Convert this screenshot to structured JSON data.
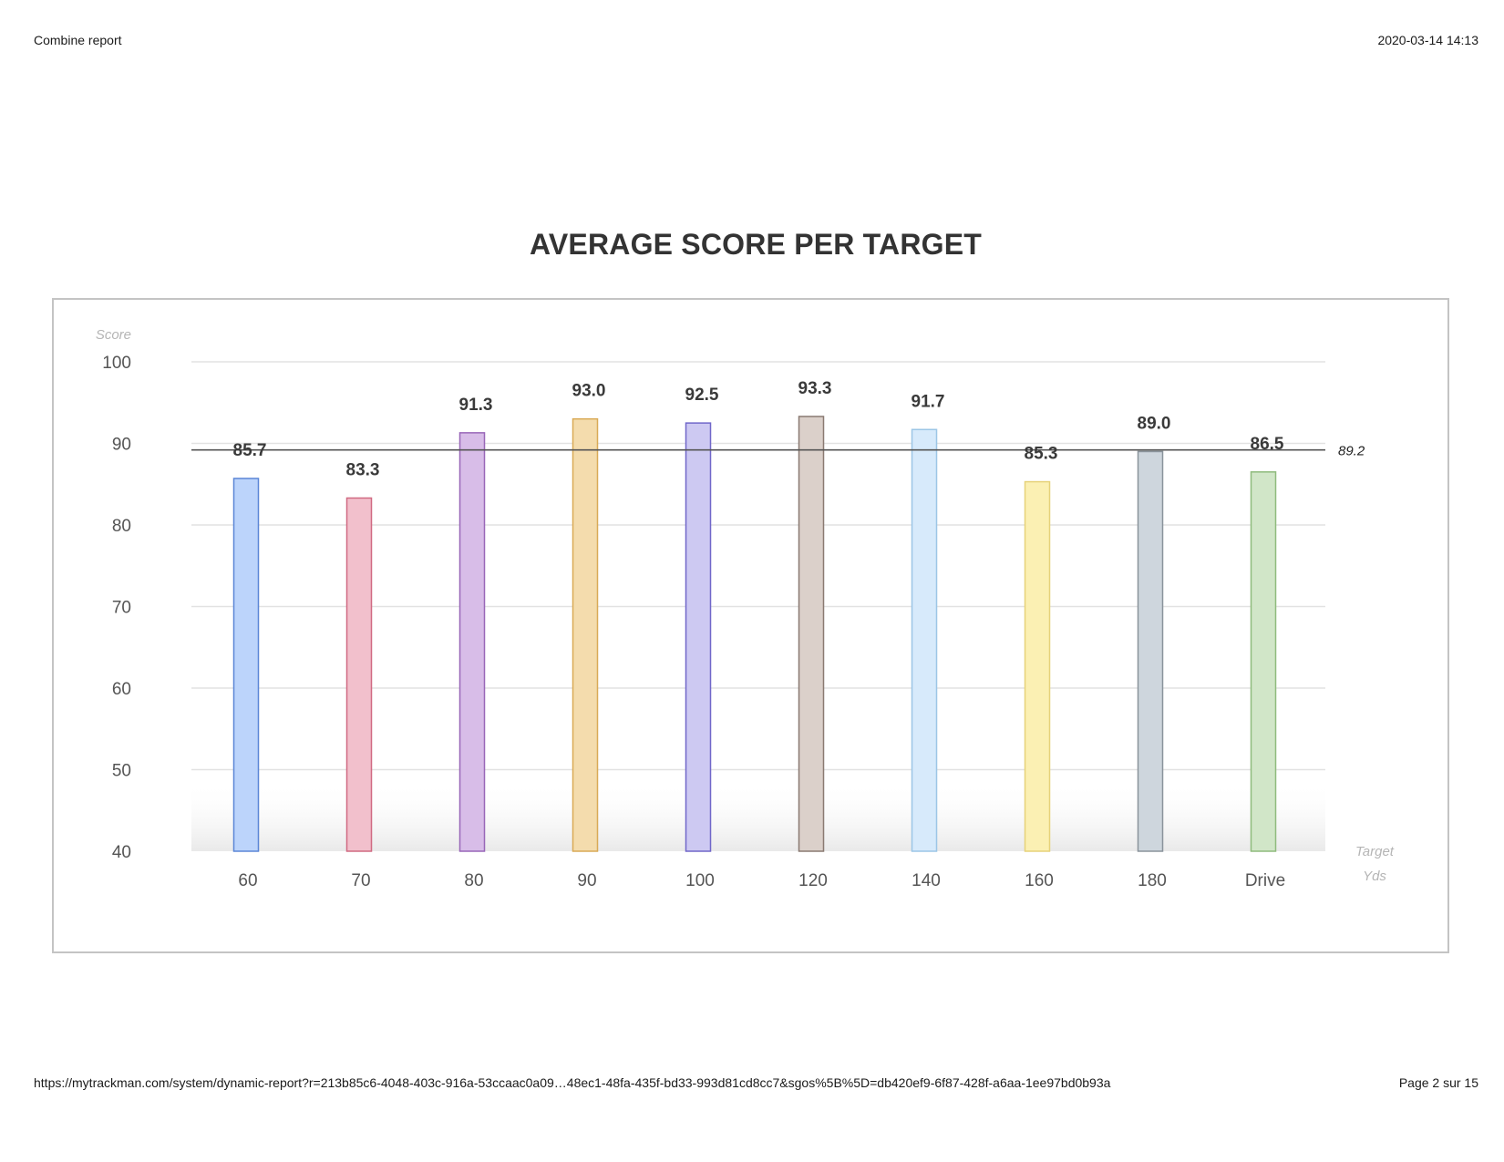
{
  "header": {
    "title": "Combine report",
    "timestamp": "2020-03-14 14:13"
  },
  "footer": {
    "url": "https://mytrackman.com/system/dynamic-report?r=213b85c6-4048-403c-916a-53ccaac0a09…48ec1-48fa-435f-bd33-993d81cd8cc7&sgos%5B%5D=db420ef9-6f87-428f-a6aa-1ee97bd0b93a",
    "page": "Page 2 sur 15"
  },
  "chart_data": {
    "type": "bar",
    "title": "AVERAGE SCORE PER TARGET",
    "xlabel": "Target Yds",
    "xlabel_lines": [
      "Target",
      "Yds"
    ],
    "ylabel": "Score",
    "ylim": [
      40,
      100
    ],
    "yticks": [
      40,
      50,
      60,
      70,
      80,
      90,
      100
    ],
    "grid": true,
    "legend": "none",
    "categories": [
      "60",
      "70",
      "80",
      "90",
      "100",
      "120",
      "140",
      "160",
      "180",
      "Drive"
    ],
    "values": [
      85.7,
      83.3,
      91.3,
      93.0,
      92.5,
      93.3,
      91.7,
      85.3,
      89.0,
      86.5
    ],
    "value_labels": [
      "85.7",
      "83.3",
      "91.3",
      "93.0",
      "92.5",
      "93.3",
      "91.7",
      "85.3",
      "89.0",
      "86.5"
    ],
    "average_line": {
      "value": 89.2,
      "label": "89.2"
    },
    "bar_colors": [
      {
        "fill": "#bcd4fb",
        "stroke": "#5b86d6"
      },
      {
        "fill": "#f2c0cc",
        "stroke": "#d06a82"
      },
      {
        "fill": "#d8bde8",
        "stroke": "#9866b8"
      },
      {
        "fill": "#f4dcad",
        "stroke": "#d9aa56"
      },
      {
        "fill": "#cdc9f2",
        "stroke": "#7067c9"
      },
      {
        "fill": "#dbd0ca",
        "stroke": "#8a7a72"
      },
      {
        "fill": "#d7eafb",
        "stroke": "#9cc6e6"
      },
      {
        "fill": "#fbf0b3",
        "stroke": "#e6d27a"
      },
      {
        "fill": "#ced6dd",
        "stroke": "#8a939b"
      },
      {
        "fill": "#d1e6c8",
        "stroke": "#8fbb7d"
      }
    ]
  }
}
